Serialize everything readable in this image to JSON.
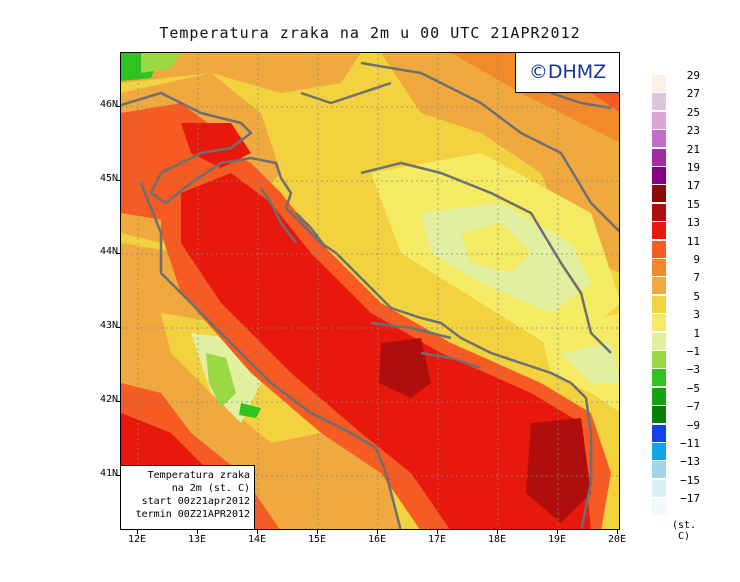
{
  "title": "Temperatura zraka na 2m u 00 UTC 21APR2012",
  "logo": "©DHMZ",
  "infobox": {
    "line1": "Temperatura zraka",
    "line2": "na 2m (st. C)",
    "line3": "start 00z21apr2012",
    "line4": "termin 00Z21APR2012"
  },
  "axes": {
    "x_ticks": [
      "12E",
      "13E",
      "14E",
      "15E",
      "16E",
      "17E",
      "18E",
      "19E",
      "20E"
    ],
    "y_ticks": [
      "46N",
      "45N",
      "44N",
      "43N",
      "42N",
      "41N"
    ]
  },
  "legend": {
    "labels": [
      "29",
      "27",
      "25",
      "23",
      "21",
      "19",
      "17",
      "15",
      "13",
      "11",
      "9",
      "7",
      "5",
      "3",
      "1",
      "−1",
      "−3",
      "−5",
      "−7",
      "−9",
      "−11",
      "−13",
      "−15",
      "−17"
    ],
    "colors": [
      "#fdf0e4",
      "#dcc6dc",
      "#d9a6d5",
      "#c26ec8",
      "#a12da4",
      "#850080",
      "#8b0a0a",
      "#b00d0d",
      "#e8180c",
      "#f55b23",
      "#f08a2a",
      "#f0a93e",
      "#f2d33f",
      "#f4ea64",
      "#e1efa0",
      "#9ad844",
      "#30c21e",
      "#11a310",
      "#0a7e0a",
      "#1440e8",
      "#12a4e8",
      "#a4d4e8",
      "#d8f0f4",
      "#f0fafb"
    ],
    "unit": "(st. C)"
  }
}
